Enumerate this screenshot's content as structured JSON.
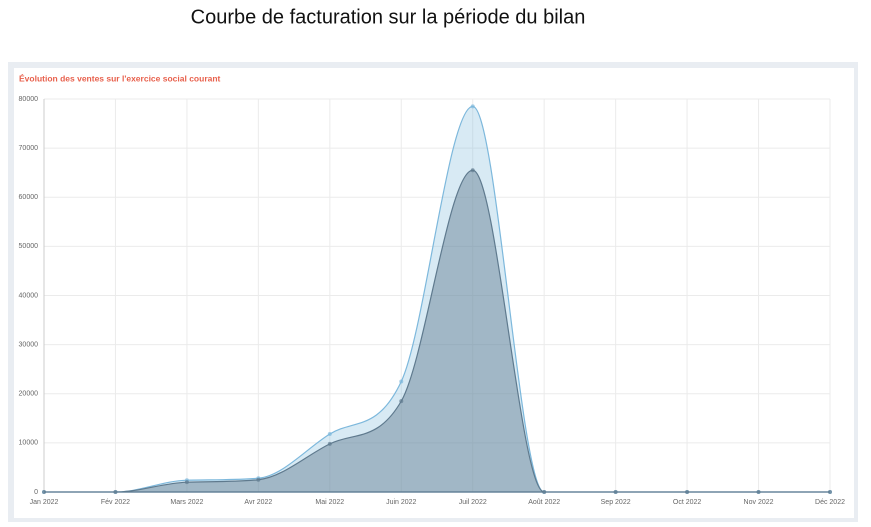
{
  "header": {
    "title": "Courbe de facturation sur la période du bilan"
  },
  "chart_data": {
    "type": "area",
    "title": "Évolution des ventes sur l'exercice social courant",
    "categories": [
      "Jan 2022",
      "Fév 2022",
      "Mars 2022",
      "Avr 2022",
      "Mai 2022",
      "Juin 2022",
      "Juil 2022",
      "Août 2022",
      "Sep 2022",
      "Oct 2022",
      "Nov 2022",
      "Déc 2022"
    ],
    "series": [
      {
        "color": "#7db8dc",
        "values": [
          0,
          0,
          2400,
          2800,
          11800,
          22500,
          78500,
          0,
          0,
          0,
          0,
          0
        ]
      },
      {
        "color": "#5f7a8e",
        "values": [
          0,
          0,
          2000,
          2500,
          9800,
          18500,
          65500,
          0,
          0,
          0,
          0,
          0
        ]
      }
    ],
    "ylim": [
      0,
      80000
    ],
    "yticks": [
      0,
      10000,
      20000,
      30000,
      40000,
      50000,
      60000,
      70000,
      80000
    ],
    "grid": true
  }
}
